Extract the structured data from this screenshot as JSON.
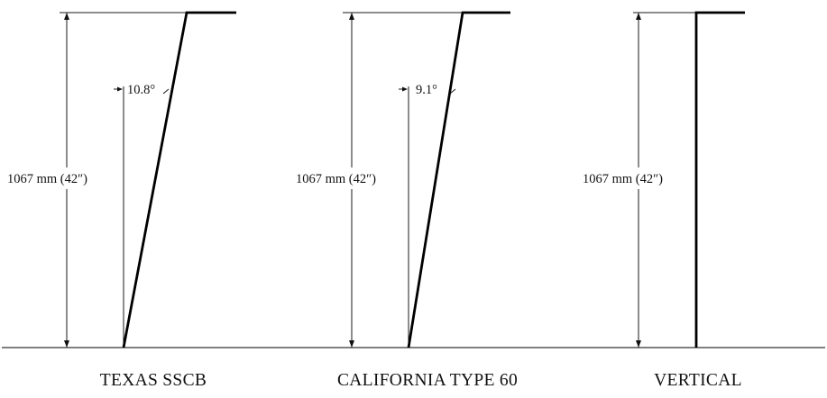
{
  "barriers": [
    {
      "id": "texas",
      "caption": "TEXAS SSCB",
      "height_label": "1067 mm (42″)",
      "angle_label": "10.8°",
      "slope_deg": 10.8
    },
    {
      "id": "california",
      "caption": "CALIFORNIA TYPE 60",
      "height_label": "1067 mm (42″)",
      "angle_label": "9.1°",
      "slope_deg": 9.1
    },
    {
      "id": "vertical",
      "caption": "VERTICAL",
      "height_label": "1067 mm (42″)",
      "angle_label": "",
      "slope_deg": 0
    }
  ]
}
